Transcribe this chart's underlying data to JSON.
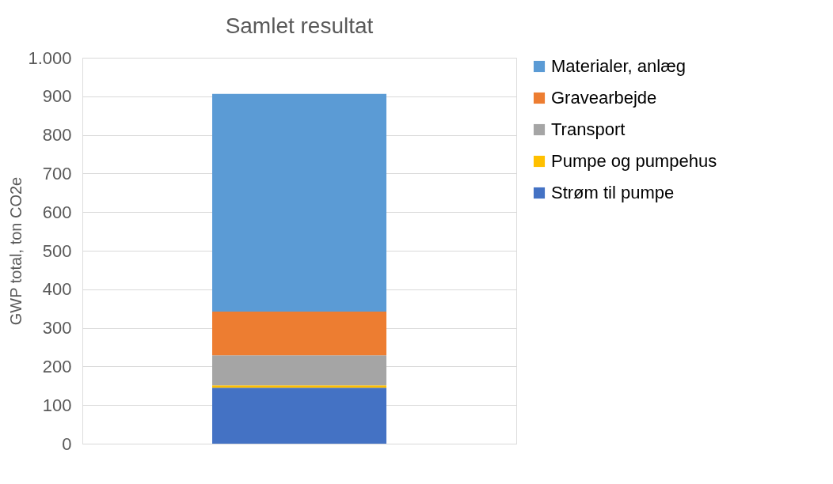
{
  "chart_data": {
    "type": "bar",
    "title": "Samlet resultat",
    "ylabel": "GWP total, ton CO2e",
    "categories": [
      null
    ],
    "stacked": true,
    "series": [
      {
        "name": "Strøm til pumpe",
        "color": "#4472c4",
        "values": [
          145
        ]
      },
      {
        "name": "Pumpe og pumpehus",
        "color": "#ffc000",
        "values": [
          6
        ]
      },
      {
        "name": "Transport",
        "color": "#a5a5a5",
        "values": [
          78
        ]
      },
      {
        "name": "Gravearbejde",
        "color": "#ed7d31",
        "values": [
          113
        ]
      },
      {
        "name": "Materialer, anlæg",
        "color": "#5b9bd5",
        "values": [
          564
        ]
      }
    ],
    "ylim": [
      0,
      1000
    ],
    "yticks": [
      0,
      100,
      200,
      300,
      400,
      500,
      600,
      700,
      800,
      900,
      {
        "value": 1000,
        "label": "1.000"
      }
    ],
    "grid": "y",
    "legend": "right"
  }
}
